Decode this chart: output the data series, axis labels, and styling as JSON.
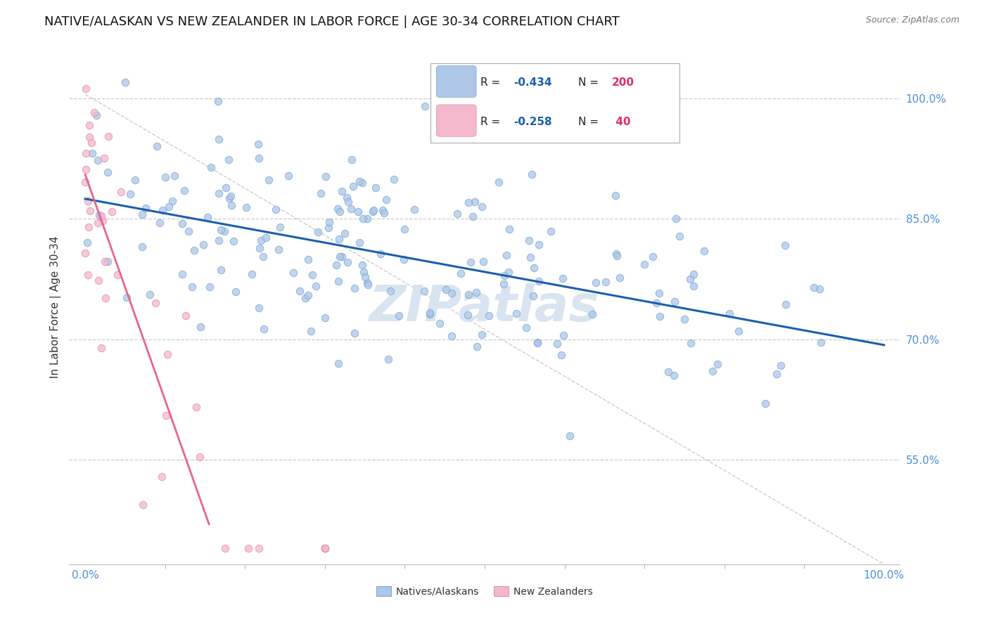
{
  "title": "NATIVE/ALASKAN VS NEW ZEALANDER IN LABOR FORCE | AGE 30-34 CORRELATION CHART",
  "source": "Source: ZipAtlas.com",
  "ylabel": "In Labor Force | Age 30-34",
  "yticks": [
    0.55,
    0.7,
    0.85,
    1.0
  ],
  "ytick_labels": [
    "55.0%",
    "70.0%",
    "85.0%",
    "100.0%"
  ],
  "xtick_labels": [
    "0.0%",
    "100.0%"
  ],
  "xlim": [
    -0.02,
    1.02
  ],
  "ylim": [
    0.42,
    1.06
  ],
  "blue_R": -0.434,
  "blue_N": 200,
  "pink_R": -0.258,
  "pink_N": 40,
  "blue_color": "#aec6e8",
  "blue_edge_color": "#7aaad4",
  "blue_line_color": "#1a5fad",
  "pink_color": "#f4b8cc",
  "pink_edge_color": "#e090aa",
  "pink_line_color": "#e8648c",
  "watermark": "ZIPatlas",
  "watermark_color": "#d8e4f0",
  "background_color": "#ffffff",
  "grid_color": "#cccccc",
  "title_fontsize": 13,
  "axis_tick_color": "#4a90d9",
  "legend_R_color": "#1a5fad",
  "legend_N_color": "#e03060",
  "blue_line_x0": 0.0,
  "blue_line_x1": 1.0,
  "blue_line_y0": 0.875,
  "blue_line_y1": 0.693,
  "pink_line_x0": 0.0,
  "pink_line_x1": 0.155,
  "pink_line_y0": 0.905,
  "pink_line_y1": 0.47,
  "diag_line_x0": 0.0,
  "diag_line_x1": 1.0,
  "diag_line_y0": 1.005,
  "diag_line_y1": 0.42
}
